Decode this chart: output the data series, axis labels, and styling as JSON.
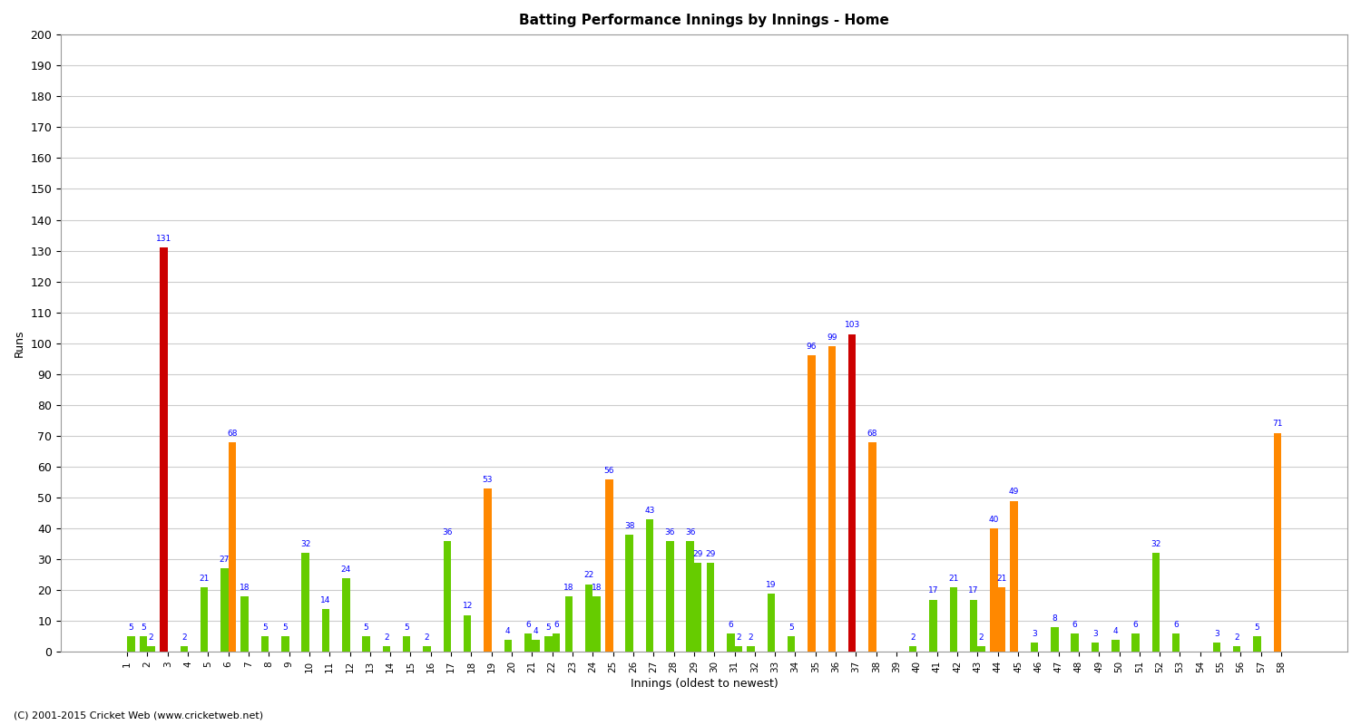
{
  "title": "Batting Performance Innings by Innings - Home",
  "xlabel": "Innings (oldest to newest)",
  "ylabel": "Runs",
  "ylim": [
    0,
    200
  ],
  "yticks": [
    0,
    10,
    20,
    30,
    40,
    50,
    60,
    70,
    80,
    90,
    100,
    110,
    120,
    130,
    140,
    150,
    160,
    170,
    180,
    190,
    200
  ],
  "innings_labels": [
    "1",
    "2",
    "3",
    "4",
    "5",
    "6",
    "7",
    "8",
    "9",
    "10",
    "11",
    "12",
    "13",
    "14",
    "15",
    "16",
    "17",
    "18",
    "19",
    "20",
    "21",
    "22",
    "23",
    "24",
    "25",
    "26",
    "27",
    "28",
    "29",
    "30",
    "31",
    "32",
    "33",
    "34",
    "35",
    "36",
    "37",
    "38",
    "39",
    "40",
    "41",
    "42",
    "43",
    "44",
    "45",
    "46",
    "47",
    "48",
    "49",
    "50",
    "51",
    "52",
    "53",
    "54",
    "55",
    "56",
    "57",
    "58"
  ],
  "bar1_values": [
    0,
    5,
    131,
    2,
    21,
    27,
    18,
    5,
    5,
    32,
    14,
    24,
    5,
    2,
    5,
    2,
    36,
    12,
    53,
    4,
    6,
    5,
    18,
    22,
    56,
    38,
    43,
    36,
    36,
    29,
    6,
    2,
    19,
    5,
    96,
    99,
    103,
    68,
    0,
    2,
    17,
    21,
    17,
    40,
    49,
    3,
    8,
    6,
    3,
    4,
    6,
    32,
    6,
    0,
    3,
    2,
    5,
    71
  ],
  "bar2_values": [
    5,
    2,
    0,
    0,
    0,
    68,
    0,
    0,
    0,
    0,
    0,
    0,
    0,
    0,
    0,
    0,
    0,
    0,
    0,
    0,
    4,
    6,
    0,
    18,
    0,
    0,
    0,
    0,
    29,
    0,
    2,
    0,
    0,
    0,
    0,
    0,
    0,
    0,
    0,
    0,
    0,
    0,
    2,
    21,
    0,
    0,
    0,
    0,
    0,
    0,
    0,
    0,
    0,
    0,
    0,
    0,
    0,
    0
  ],
  "bar1_colors_raw": [
    "green",
    "green",
    "red",
    "green",
    "green",
    "green",
    "green",
    "green",
    "green",
    "green",
    "green",
    "green",
    "green",
    "green",
    "green",
    "green",
    "green",
    "green",
    "orange",
    "green",
    "green",
    "green",
    "green",
    "green",
    "orange",
    "green",
    "green",
    "green",
    "green",
    "green",
    "green",
    "green",
    "green",
    "green",
    "orange",
    "orange",
    "red",
    "orange",
    "green",
    "green",
    "green",
    "green",
    "green",
    "orange",
    "orange",
    "green",
    "green",
    "green",
    "green",
    "green",
    "green",
    "green",
    "green",
    "green",
    "green",
    "green",
    "green",
    "orange"
  ],
  "bar2_colors_raw": [
    "green",
    "green",
    "none",
    "green",
    "green",
    "orange",
    "green",
    "green",
    "orange",
    "orange",
    "green",
    "orange",
    "green",
    "green",
    "green",
    "green",
    "orange",
    "green",
    "orange",
    "green",
    "green",
    "green",
    "green",
    "green",
    "orange",
    "orange",
    "orange",
    "orange",
    "green",
    "orange",
    "green",
    "green",
    "green",
    "green",
    "orange",
    "orange",
    "orange",
    "orange",
    "green",
    "green",
    "green",
    "green",
    "green",
    "orange",
    "orange",
    "green",
    "green",
    "green",
    "green",
    "green",
    "green",
    "orange",
    "green",
    "green",
    "green",
    "green",
    "green",
    "orange"
  ],
  "footer": "(C) 2001-2015 Cricket Web (www.cricketweb.net)",
  "background_color": "#ffffff",
  "grid_color": "#cccccc"
}
